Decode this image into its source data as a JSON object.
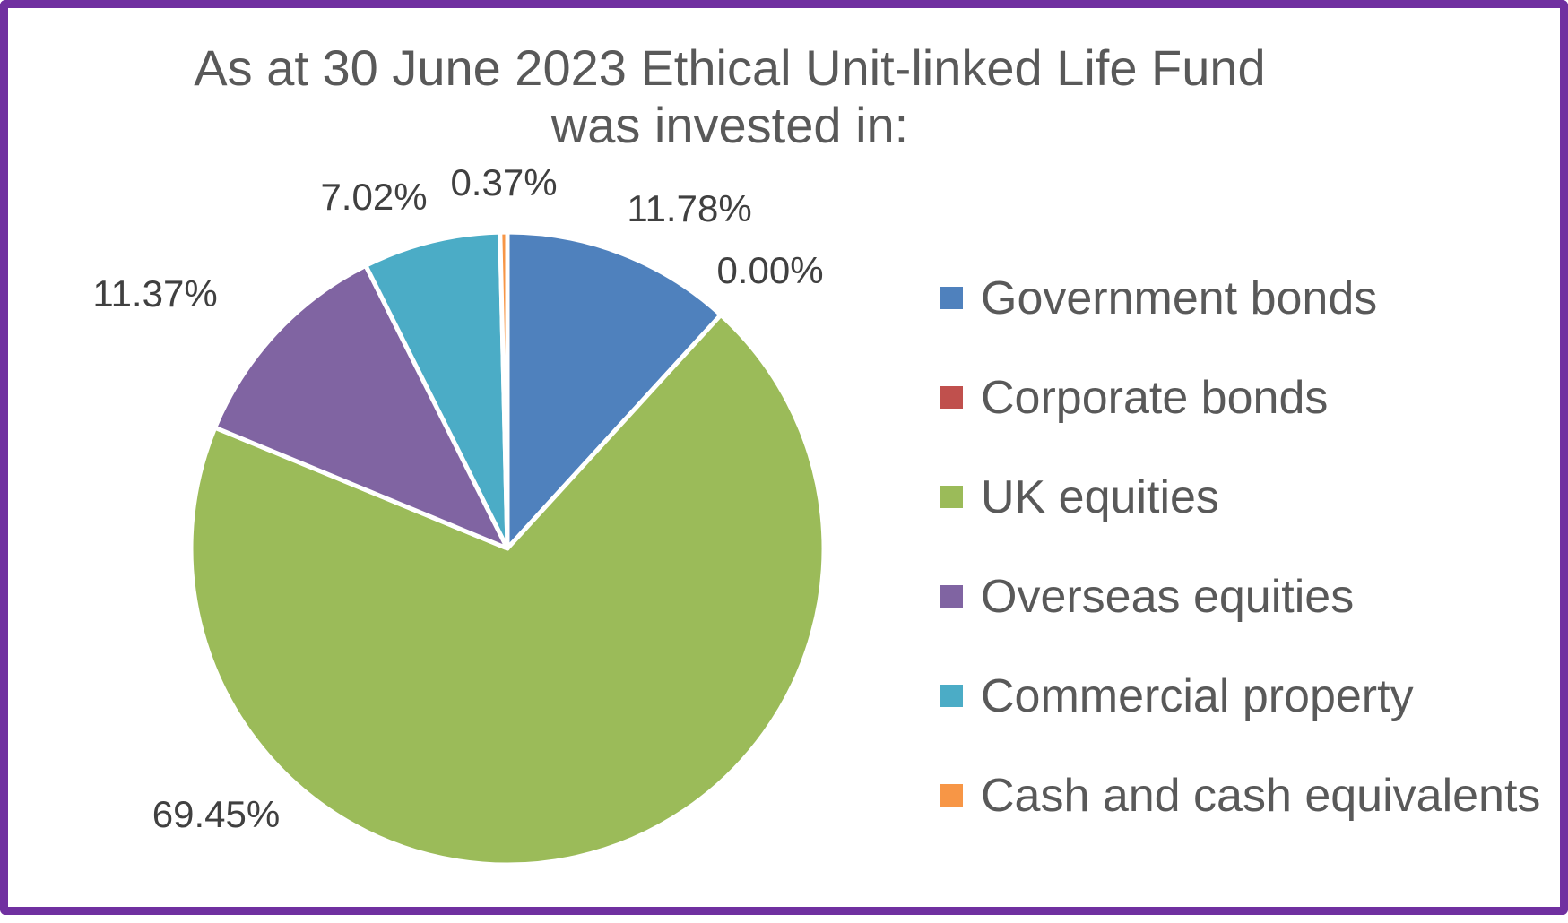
{
  "chart_data": {
    "type": "pie",
    "title": [
      "As at 30 June 2023 Ethical Unit-linked Life Fund",
      "was invested in:"
    ],
    "slices": [
      {
        "name": "Government bonds",
        "value": 11.78,
        "label": "11.78%",
        "color": "#4f81bd"
      },
      {
        "name": "Corporate bonds",
        "value": 0.0,
        "label": "0.00%",
        "color": "#c0504d"
      },
      {
        "name": "UK equities",
        "value": 69.45,
        "label": "69.45%",
        "color": "#9bbb59"
      },
      {
        "name": "Overseas equities",
        "value": 11.37,
        "label": "11.37%",
        "color": "#8064a2"
      },
      {
        "name": "Commercial property",
        "value": 7.02,
        "label": "7.02%",
        "color": "#4bacc6"
      },
      {
        "name": "Cash and cash equivalents",
        "value": 0.37,
        "label": "0.37%",
        "color": "#f79646"
      }
    ],
    "start_angle_deg": 0,
    "direction": "clockwise",
    "legend_position": "right",
    "show_data_labels": true
  }
}
